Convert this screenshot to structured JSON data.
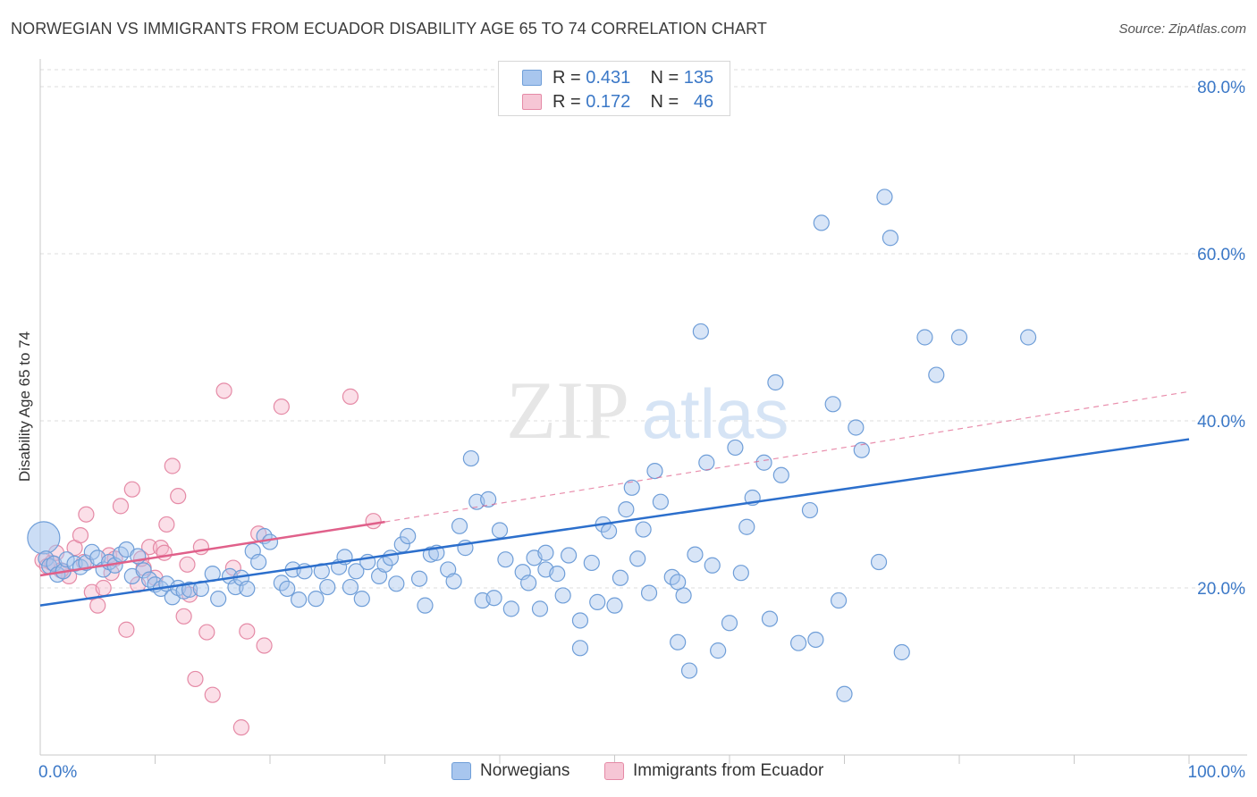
{
  "title": "NORWEGIAN VS IMMIGRANTS FROM ECUADOR DISABILITY AGE 65 TO 74 CORRELATION CHART",
  "source": "Source: ZipAtlas.com",
  "watermark": {
    "zip": "ZIP",
    "atlas": "atlas"
  },
  "legend": {
    "norwegians": {
      "r_label": "R =",
      "r_value": "0.431",
      "n_label": "N =",
      "n_value": "135"
    },
    "ecuador": {
      "r_label": "R =",
      "r_value": "0.172",
      "n_label": "N =",
      "n_value": "46"
    }
  },
  "colors": {
    "blue_fill": "#a8c6ee",
    "blue_stroke": "#6f9ed8",
    "blue_line": "#2c6fcc",
    "pink_fill": "#f6b9cb",
    "pink_stroke": "#e58aa6",
    "pink_line": "#e0608a",
    "tick_label": "#3b78c7",
    "grid": "#dcdcdc"
  },
  "chart_data": {
    "type": "scatter",
    "title": "NORWEGIAN VS IMMIGRANTS FROM ECUADOR DISABILITY AGE 65 TO 74 CORRELATION CHART",
    "xlabel": "",
    "ylabel": "Disability Age 65 to 74",
    "xlim": [
      0,
      100
    ],
    "ylim": [
      0,
      81
    ],
    "x_tick_labels": [
      {
        "value": 0,
        "label": "0.0%"
      },
      {
        "value": 100,
        "label": "100.0%"
      }
    ],
    "y_ticks": [
      {
        "value": 20,
        "label": "20.0%"
      },
      {
        "value": 40,
        "label": "40.0%"
      },
      {
        "value": 60,
        "label": "60.0%"
      },
      {
        "value": 80,
        "label": "80.0%"
      }
    ],
    "series": [
      {
        "name": "Norwegians",
        "color": "blue",
        "trend": {
          "x": [
            0,
            100
          ],
          "y": [
            17.9,
            37.8
          ],
          "style": "solid"
        },
        "points": [
          [
            0.3,
            26.0
          ],
          [
            0.5,
            23.5
          ],
          [
            0.8,
            22.6
          ],
          [
            1.2,
            22.9
          ],
          [
            1.5,
            21.6
          ],
          [
            2.0,
            22.0
          ],
          [
            2.3,
            23.4
          ],
          [
            3.0,
            22.9
          ],
          [
            3.5,
            22.5
          ],
          [
            4.0,
            23.0
          ],
          [
            4.5,
            24.3
          ],
          [
            5.0,
            23.6
          ],
          [
            5.5,
            22.2
          ],
          [
            6.0,
            23.1
          ],
          [
            6.5,
            22.7
          ],
          [
            7.0,
            24.0
          ],
          [
            7.5,
            24.6
          ],
          [
            8.0,
            21.4
          ],
          [
            8.5,
            23.8
          ],
          [
            9.0,
            22.1
          ],
          [
            9.5,
            21.0
          ],
          [
            10.0,
            20.4
          ],
          [
            10.5,
            19.9
          ],
          [
            11.0,
            20.5
          ],
          [
            11.5,
            18.9
          ],
          [
            12.0,
            20.0
          ],
          [
            12.5,
            19.6
          ],
          [
            13.0,
            19.8
          ],
          [
            14.0,
            19.9
          ],
          [
            15.0,
            21.7
          ],
          [
            15.5,
            18.7
          ],
          [
            16.5,
            21.4
          ],
          [
            17.0,
            20.1
          ],
          [
            17.5,
            21.2
          ],
          [
            18.0,
            19.9
          ],
          [
            18.5,
            24.4
          ],
          [
            19.0,
            23.1
          ],
          [
            19.5,
            26.2
          ],
          [
            20.0,
            25.5
          ],
          [
            21.0,
            20.6
          ],
          [
            21.5,
            19.9
          ],
          [
            22.0,
            22.2
          ],
          [
            22.5,
            18.6
          ],
          [
            23.0,
            22.0
          ],
          [
            24.0,
            18.7
          ],
          [
            24.5,
            22.0
          ],
          [
            25.0,
            20.1
          ],
          [
            26.0,
            22.5
          ],
          [
            26.5,
            23.7
          ],
          [
            27.0,
            20.1
          ],
          [
            27.5,
            22.0
          ],
          [
            28.0,
            18.7
          ],
          [
            28.5,
            23.1
          ],
          [
            29.5,
            21.4
          ],
          [
            30.0,
            22.8
          ],
          [
            30.5,
            23.6
          ],
          [
            31.0,
            20.5
          ],
          [
            31.5,
            25.2
          ],
          [
            32.0,
            26.2
          ],
          [
            33.0,
            21.1
          ],
          [
            33.5,
            17.9
          ],
          [
            34.0,
            24.0
          ],
          [
            34.5,
            24.2
          ],
          [
            35.5,
            22.2
          ],
          [
            36.0,
            20.8
          ],
          [
            36.5,
            27.4
          ],
          [
            37.0,
            24.8
          ],
          [
            37.5,
            35.5
          ],
          [
            38.0,
            30.3
          ],
          [
            38.5,
            18.5
          ],
          [
            39.0,
            30.6
          ],
          [
            39.5,
            18.8
          ],
          [
            40.0,
            26.9
          ],
          [
            40.5,
            23.4
          ],
          [
            41.0,
            17.5
          ],
          [
            42.0,
            21.9
          ],
          [
            42.5,
            20.6
          ],
          [
            43.0,
            23.6
          ],
          [
            43.5,
            17.5
          ],
          [
            44.0,
            24.2
          ],
          [
            44.0,
            22.2
          ],
          [
            45.0,
            21.7
          ],
          [
            45.5,
            19.1
          ],
          [
            46.0,
            23.9
          ],
          [
            47.0,
            16.1
          ],
          [
            47.0,
            12.8
          ],
          [
            48.0,
            23.0
          ],
          [
            48.5,
            18.3
          ],
          [
            49.0,
            27.6
          ],
          [
            49.5,
            26.8
          ],
          [
            50.0,
            17.9
          ],
          [
            50.5,
            21.2
          ],
          [
            51.0,
            29.4
          ],
          [
            51.5,
            32.0
          ],
          [
            52.0,
            23.5
          ],
          [
            52.5,
            27.0
          ],
          [
            53.0,
            19.4
          ],
          [
            53.5,
            34.0
          ],
          [
            54.0,
            30.3
          ],
          [
            55.0,
            21.3
          ],
          [
            55.5,
            13.5
          ],
          [
            55.5,
            20.7
          ],
          [
            56.0,
            19.1
          ],
          [
            56.5,
            10.1
          ],
          [
            57.0,
            24.0
          ],
          [
            57.5,
            50.7
          ],
          [
            58.0,
            35.0
          ],
          [
            58.5,
            22.7
          ],
          [
            59.0,
            12.5
          ],
          [
            60.0,
            15.8
          ],
          [
            60.5,
            36.8
          ],
          [
            61.0,
            21.8
          ],
          [
            61.5,
            27.3
          ],
          [
            62.0,
            30.8
          ],
          [
            63.0,
            35.0
          ],
          [
            63.5,
            16.3
          ],
          [
            64.0,
            44.6
          ],
          [
            64.5,
            33.5
          ],
          [
            66.0,
            13.4
          ],
          [
            67.0,
            29.3
          ],
          [
            67.5,
            13.8
          ],
          [
            68.0,
            63.7
          ],
          [
            69.0,
            42.0
          ],
          [
            69.5,
            18.5
          ],
          [
            70.0,
            7.3
          ],
          [
            71.0,
            39.2
          ],
          [
            71.5,
            36.5
          ],
          [
            73.0,
            23.1
          ],
          [
            73.5,
            66.8
          ],
          [
            74.0,
            61.9
          ],
          [
            75.0,
            12.3
          ],
          [
            77.0,
            50.0
          ],
          [
            78.0,
            45.5
          ],
          [
            80.0,
            50.0
          ],
          [
            86.0,
            50.0
          ]
        ]
      },
      {
        "name": "Immigrants from Ecuador",
        "color": "pink",
        "trend": {
          "x": [
            0,
            30
          ],
          "y": [
            21.5,
            27.9
          ],
          "style": "solid"
        },
        "trend_extension": {
          "x": [
            30,
            100
          ],
          "y": [
            27.9,
            43.5
          ],
          "style": "dashed"
        },
        "points": [
          [
            0.2,
            23.3
          ],
          [
            0.6,
            22.6
          ],
          [
            1.0,
            23.0
          ],
          [
            1.4,
            24.2
          ],
          [
            2.0,
            22.0
          ],
          [
            2.5,
            21.4
          ],
          [
            3.0,
            24.8
          ],
          [
            3.5,
            26.3
          ],
          [
            4.0,
            28.8
          ],
          [
            4.5,
            19.5
          ],
          [
            5.0,
            17.9
          ],
          [
            5.5,
            20.0
          ],
          [
            6.0,
            23.9
          ],
          [
            6.5,
            23.5
          ],
          [
            7.0,
            29.8
          ],
          [
            7.5,
            15.0
          ],
          [
            8.0,
            31.8
          ],
          [
            8.5,
            20.4
          ],
          [
            9.0,
            22.4
          ],
          [
            9.5,
            24.9
          ],
          [
            10.0,
            21.2
          ],
          [
            10.5,
            24.8
          ],
          [
            11.0,
            27.6
          ],
          [
            11.5,
            34.6
          ],
          [
            12.0,
            31.0
          ],
          [
            12.5,
            16.6
          ],
          [
            13.0,
            19.2
          ],
          [
            13.5,
            9.1
          ],
          [
            14.0,
            24.9
          ],
          [
            14.5,
            14.7
          ],
          [
            15.0,
            7.2
          ],
          [
            16.0,
            43.6
          ],
          [
            17.5,
            3.3
          ],
          [
            18.0,
            14.8
          ],
          [
            19.0,
            26.5
          ],
          [
            19.5,
            13.1
          ],
          [
            21.0,
            41.7
          ],
          [
            27.0,
            42.9
          ],
          [
            29.0,
            28.0
          ],
          [
            1.8,
            22.1
          ],
          [
            3.8,
            23.1
          ],
          [
            6.2,
            21.8
          ],
          [
            8.8,
            23.5
          ],
          [
            10.8,
            24.2
          ],
          [
            12.8,
            22.8
          ],
          [
            16.8,
            22.4
          ]
        ]
      }
    ]
  },
  "bottom_legend": {
    "norwegians": "Norwegians",
    "ecuador": "Immigrants from Ecuador"
  }
}
